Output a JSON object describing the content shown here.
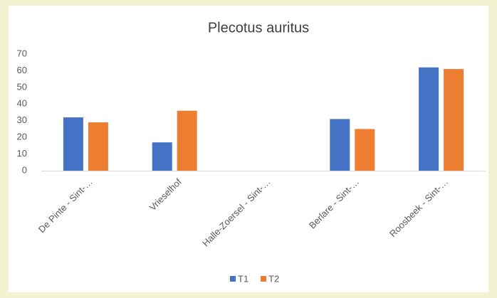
{
  "chart_data": {
    "type": "bar",
    "title": "Plecotus auritus",
    "categories": [
      "De Pinte - Sint-…",
      "Vrieselhof",
      "Halle-Zoersel - Sint-…",
      "Berlare - Sint-…",
      "Roosbeek - Sint-…"
    ],
    "series": [
      {
        "name": "T1",
        "color": "#4472c4",
        "values": [
          32,
          17,
          0,
          31,
          62
        ]
      },
      {
        "name": "T2",
        "color": "#ed7d31",
        "values": [
          29,
          36,
          0,
          25,
          61
        ]
      }
    ],
    "ylim": [
      0,
      70
    ],
    "yticks": [
      0,
      10,
      20,
      30,
      40,
      50,
      60,
      70
    ],
    "grid": false,
    "legend": "bottom"
  }
}
